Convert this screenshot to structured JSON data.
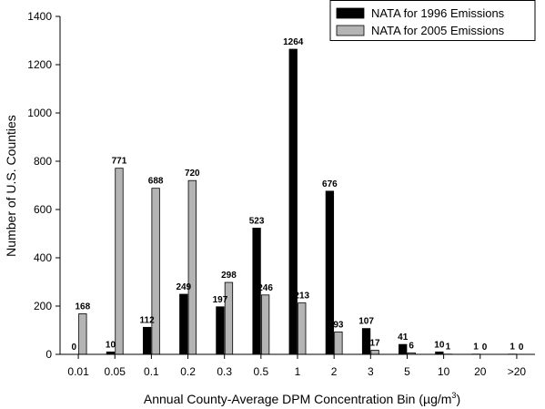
{
  "chart_data": {
    "type": "bar",
    "categories": [
      "0.01",
      "0.05",
      "0.1",
      "0.2",
      "0.3",
      "0.5",
      "1",
      "2",
      "3",
      "5",
      "10",
      "20",
      ">20"
    ],
    "series": [
      {
        "name": "NATA for 1996 Emissions",
        "color": "#000000",
        "values": [
          0,
          10,
          112,
          249,
          197,
          523,
          1264,
          676,
          107,
          41,
          10,
          1,
          1
        ]
      },
      {
        "name": "NATA for 2005 Emissions",
        "color": "#b4b4b4",
        "values": [
          168,
          771,
          688,
          720,
          298,
          246,
          213,
          93,
          17,
          6,
          1,
          0,
          0
        ]
      }
    ],
    "xlabel": "Annual County-Average DPM Concentration Bin (µg/m³)",
    "xlabel_main": "Annual County-Average DPM Concentration Bin (",
    "xlabel_unit_mu": "µ",
    "xlabel_unit_g": "g/m",
    "xlabel_unit_sup": "3",
    "xlabel_close": ")",
    "ylabel": "Number of U.S. Counties",
    "ylim": [
      0,
      1400
    ],
    "yticks": [
      0,
      200,
      400,
      600,
      800,
      1000,
      1200,
      1400
    ],
    "grid": false,
    "legend_position": "top-right",
    "data_labels": true
  }
}
